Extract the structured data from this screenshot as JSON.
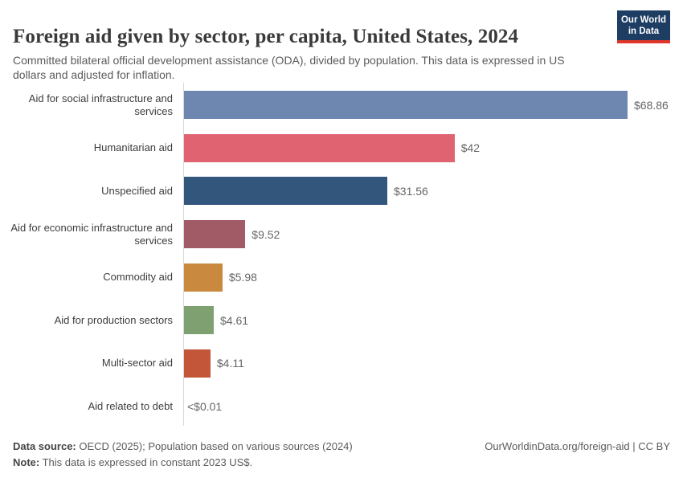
{
  "header": {
    "title": "Foreign aid given by sector, per capita, United States, 2024",
    "subtitle": "Committed bilateral official development assistance (ODA), divided by population. This data is expressed in US dollars and adjusted for inflation.",
    "logo": {
      "line1": "Our World",
      "line2": "in Data",
      "bg_color": "#1d3d63",
      "accent_color": "#e0362c"
    }
  },
  "chart_data": {
    "type": "bar",
    "orientation": "horizontal",
    "title": "Foreign aid given by sector, per capita, United States, 2024",
    "xlabel": "",
    "ylabel": "",
    "unit": "US$ per capita (constant 2023 US$)",
    "xlim": [
      0,
      68.86
    ],
    "grid": false,
    "legend": "none",
    "categories": [
      "Aid for social infrastructure and services",
      "Humanitarian aid",
      "Unspecified aid",
      "Aid for economic infrastructure and services",
      "Commodity aid",
      "Aid for production sectors",
      "Multi-sector aid",
      "Aid related to debt"
    ],
    "values": [
      68.86,
      42,
      31.56,
      9.52,
      5.98,
      4.61,
      4.11,
      0.005
    ],
    "value_labels": [
      "$68.86",
      "$42",
      "$31.56",
      "$9.52",
      "$5.98",
      "$4.61",
      "$4.11",
      "<$0.01"
    ],
    "colors": [
      "#6e87b1",
      "#e06372",
      "#33567d",
      "#a05b66",
      "#c98a40",
      "#7fa071",
      "#c35538",
      "#999999"
    ]
  },
  "footer": {
    "source_label": "Data source:",
    "source_text": "OECD (2025); Population based on various sources (2024)",
    "note_label": "Note:",
    "note_text": "This data is expressed in constant 2023 US$.",
    "link": "OurWorldinData.org/foreign-aid | CC BY"
  }
}
